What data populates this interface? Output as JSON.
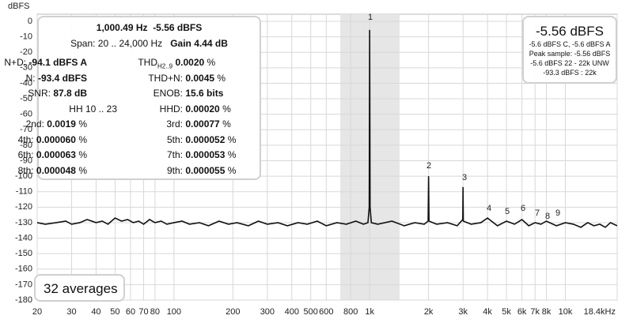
{
  "chart_data": {
    "type": "line",
    "y_label": "dBFS",
    "log_x": true,
    "grid": true,
    "xlim": [
      20,
      18400
    ],
    "ylim": [
      -180,
      0
    ],
    "xticks": [
      20,
      30,
      40,
      50,
      60,
      70,
      80,
      100,
      200,
      300,
      400,
      500,
      600,
      800,
      {
        "value": 1000,
        "label": "1k"
      },
      {
        "value": 2000,
        "label": "2k"
      },
      {
        "value": 3000,
        "label": "3k"
      },
      {
        "value": 4000,
        "label": "4k"
      },
      {
        "value": 5000,
        "label": "5k"
      },
      {
        "value": 6000,
        "label": "6k"
      },
      {
        "value": 7000,
        "label": "7k"
      },
      {
        "value": 8000,
        "label": "8k"
      },
      {
        "value": 10000,
        "label": "10k"
      },
      {
        "value": 18400,
        "label": "18.4kHz"
      }
    ],
    "yticks": [
      0,
      -10,
      -20,
      -30,
      -40,
      -50,
      -60,
      -70,
      -80,
      -90,
      -100,
      -110,
      -120,
      -130,
      -140,
      -150,
      -160,
      -170,
      -180
    ],
    "series": [
      {
        "color": "#111111",
        "x": [
          20,
          22,
          25,
          28,
          30,
          33,
          36,
          40,
          43,
          46,
          50,
          54,
          58,
          62,
          66,
          70,
          75,
          80,
          86,
          92,
          100,
          110,
          120,
          135,
          150,
          170,
          190,
          210,
          240,
          270,
          300,
          340,
          380,
          430,
          480,
          540,
          600,
          680,
          760,
          850,
          930,
          980,
          995,
          1000,
          1005,
          1020,
          1100,
          1300,
          1500,
          1700,
          1900,
          1990,
          2000,
          2010,
          2200,
          2500,
          2800,
          2990,
          3000,
          3010,
          3300,
          3700,
          4000,
          4500,
          5000,
          5500,
          6000,
          6500,
          7000,
          7500,
          8000,
          9000,
          10000,
          11000,
          12000,
          13000,
          14000,
          15000,
          16000,
          17000,
          18400
        ],
        "values": [
          -130,
          -131,
          -130,
          -129,
          -131,
          -130,
          -128,
          -130,
          -129,
          -131,
          -127,
          -129,
          -128,
          -130,
          -129,
          -131,
          -128,
          -130,
          -129,
          -131,
          -130,
          -129,
          -131,
          -130,
          -132,
          -129,
          -131,
          -130,
          -132,
          -129,
          -131,
          -130,
          -132,
          -130,
          -131,
          -129,
          -132,
          -130,
          -131,
          -129,
          -131,
          -130,
          -120,
          -5.56,
          -120,
          -130,
          -131,
          -129,
          -132,
          -130,
          -131,
          -129,
          -100,
          -129,
          -131,
          -130,
          -132,
          -128,
          -107,
          -129,
          -131,
          -130,
          -127,
          -132,
          -129,
          -131,
          -128,
          -132,
          -130,
          -131,
          -129,
          -132,
          -130,
          -131,
          -133,
          -130,
          -132,
          -131,
          -133,
          -130,
          -132
        ]
      }
    ]
  },
  "harmonic_labels": [
    "1",
    "2",
    "3",
    "4",
    "5",
    "6",
    "7",
    "8",
    "9"
  ],
  "measurements": {
    "freq": "1,000.49 Hz",
    "level": "-5.56 dBFS",
    "span": "Span: 20 .. 24,000 Hz",
    "gain": "Gain 4.44 dB",
    "rows": [
      [
        {
          "label": "N+D:",
          "value": "-94.1 dBFS A"
        },
        {
          "label": "THD",
          "sub": "H2..9",
          "value": "0.0020",
          "unit": "%"
        }
      ],
      [
        {
          "label": "N:",
          "value": "-93.4 dBFS"
        },
        {
          "label": "THD+N:",
          "value": "0.0045",
          "unit": "%"
        }
      ],
      [
        {
          "label": "SNR:",
          "value": "87.8 dB"
        },
        {
          "label": "ENOB:",
          "value": "15.6 bits"
        }
      ],
      [
        {
          "label": "HH 10 .. 23"
        },
        {
          "label": "HHD:",
          "value": "0.00020",
          "unit": "%"
        }
      ],
      [
        {
          "label": "2nd:",
          "value": "0.0019",
          "unit": "%"
        },
        {
          "label": "3rd:",
          "value": "0.00077",
          "unit": "%"
        }
      ],
      [
        {
          "label": "4th:",
          "value": "0.000060",
          "unit": "%"
        },
        {
          "label": "5th:",
          "value": "0.000052",
          "unit": "%"
        }
      ],
      [
        {
          "label": "6th:",
          "value": "0.000063",
          "unit": "%"
        },
        {
          "label": "7th:",
          "value": "0.000053",
          "unit": "%"
        }
      ],
      [
        {
          "label": "8th:",
          "value": "0.000048",
          "unit": "%"
        },
        {
          "label": "9th:",
          "value": "0.000055",
          "unit": "%"
        }
      ]
    ]
  },
  "summary": {
    "big": "-5.56 dBFS",
    "lines": [
      "-5.6 dBFS C, -5.6 dBFS A",
      "Peak sample: -5.56 dBFS",
      "-5.6 dBFS 22 - 22k UNW",
      "-93.3 dBFS : 22k"
    ]
  },
  "averages": "32 averages"
}
